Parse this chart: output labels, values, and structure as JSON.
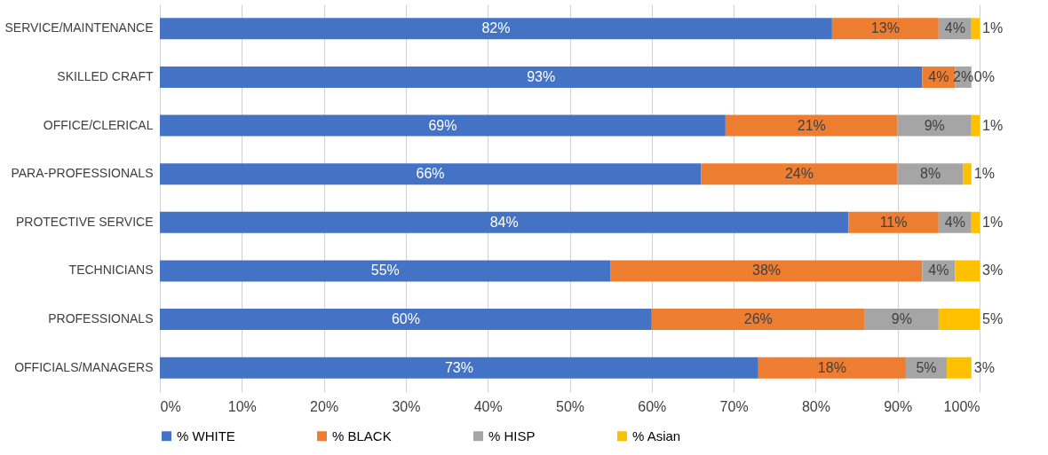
{
  "chart_data": {
    "type": "bar",
    "orientation": "horizontal",
    "stacked": true,
    "categories": [
      "SERVICE/MAINTENANCE",
      "SKILLED CRAFT",
      "OFFICE/CLERICAL",
      "PARA-PROFESSIONALS",
      "PROTECTIVE SERVICE",
      "TECHNICIANS",
      "PROFESSIONALS",
      "OFFICIALS/MANAGERS"
    ],
    "series": [
      {
        "name": "% WHITE",
        "color": "#4472c4",
        "values": [
          82,
          93,
          69,
          66,
          84,
          55,
          60,
          73
        ],
        "value_labels": [
          "82%",
          "93%",
          "69%",
          "66%",
          "84%",
          "55%",
          "60%",
          "73%"
        ]
      },
      {
        "name": "% BLACK",
        "color": "#ed7d31",
        "values": [
          13,
          4,
          21,
          24,
          11,
          38,
          26,
          18
        ],
        "value_labels": [
          "13%",
          "4%",
          "21%",
          "24%",
          "11%",
          "38%",
          "26%",
          "18%"
        ]
      },
      {
        "name": "% HISP",
        "color": "#a5a5a5",
        "values": [
          4,
          2,
          9,
          8,
          4,
          4,
          9,
          5
        ],
        "value_labels": [
          "4%",
          "2%",
          "9%",
          "8%",
          "4%",
          "4%",
          "9%",
          "5%"
        ]
      },
      {
        "name": "% Asian",
        "color": "#ffc000",
        "values": [
          1,
          0,
          1,
          1,
          1,
          3,
          5,
          3
        ],
        "value_labels": [
          "1%",
          "0%",
          "1%",
          "1%",
          "1%",
          "3%",
          "5%",
          "3%"
        ]
      }
    ],
    "xlim": [
      0,
      100
    ],
    "xticks": [
      {
        "value": 0,
        "label": "0%"
      },
      {
        "value": 10,
        "label": "10%"
      },
      {
        "value": 20,
        "label": "20%"
      },
      {
        "value": 30,
        "label": "30%"
      },
      {
        "value": 40,
        "label": "40%"
      },
      {
        "value": 50,
        "label": "50%"
      },
      {
        "value": 60,
        "label": "60%"
      },
      {
        "value": 70,
        "label": "70%"
      },
      {
        "value": 80,
        "label": "80%"
      },
      {
        "value": 90,
        "label": "90%"
      },
      {
        "value": 100,
        "label": "100%"
      }
    ],
    "grid": "x",
    "legend": "bottom"
  }
}
